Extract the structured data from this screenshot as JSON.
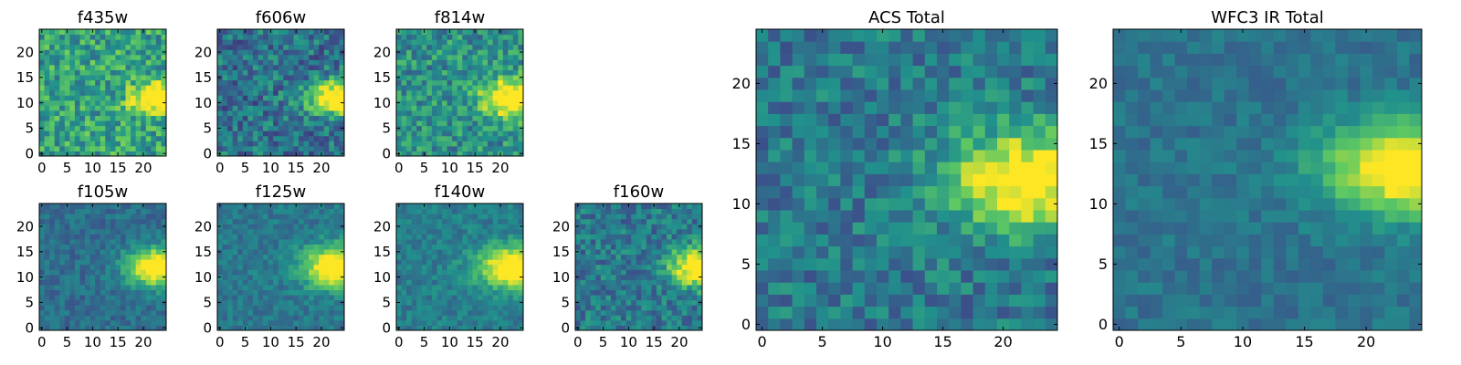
{
  "figure": {
    "background": "#ffffff"
  },
  "colormap": {
    "name": "viridis",
    "stops": [
      "#440154",
      "#3b528b",
      "#21918c",
      "#5ec962",
      "#fde725"
    ]
  },
  "chart_data": [
    {
      "type": "heatmap",
      "title": "f435w",
      "grid_size": 25,
      "xlim": [
        0,
        24
      ],
      "ylim": [
        0,
        24
      ],
      "xticks": [
        "0",
        "5",
        "10",
        "15",
        "20"
      ],
      "yticks": [
        "0",
        "5",
        "10",
        "15",
        "20"
      ],
      "feature": {
        "x": 23,
        "y": 11,
        "sx": 3.5,
        "sy": 2.0,
        "amp": 0.8
      },
      "noise": 0.22,
      "base": 0.58
    },
    {
      "type": "heatmap",
      "title": "f606w",
      "grid_size": 25,
      "xlim": [
        0,
        24
      ],
      "ylim": [
        0,
        24
      ],
      "xticks": [
        "0",
        "5",
        "10",
        "15",
        "20"
      ],
      "yticks": [
        "0",
        "5",
        "10",
        "15",
        "20"
      ],
      "feature": {
        "x": 23,
        "y": 11,
        "sx": 4.0,
        "sy": 2.3,
        "amp": 0.85
      },
      "noise": 0.2,
      "base": 0.38
    },
    {
      "type": "heatmap",
      "title": "f814w",
      "grid_size": 25,
      "xlim": [
        0,
        24
      ],
      "ylim": [
        0,
        24
      ],
      "xticks": [
        "0",
        "5",
        "10",
        "15",
        "20"
      ],
      "yticks": [
        "0",
        "5",
        "10",
        "15",
        "20"
      ],
      "feature": {
        "x": 23,
        "y": 11,
        "sx": 4.5,
        "sy": 2.6,
        "amp": 0.75
      },
      "noise": 0.2,
      "base": 0.5
    },
    {
      "type": "heatmap",
      "title": "f105w",
      "grid_size": 25,
      "xlim": [
        0,
        24
      ],
      "ylim": [
        0,
        24
      ],
      "xticks": [
        "0",
        "5",
        "10",
        "15",
        "20"
      ],
      "yticks": [
        "0",
        "5",
        "10",
        "15",
        "20"
      ],
      "feature": {
        "x": 23,
        "y": 12,
        "sx": 4.2,
        "sy": 2.6,
        "amp": 0.85
      },
      "noise": 0.1,
      "base": 0.36
    },
    {
      "type": "heatmap",
      "title": "f125w",
      "grid_size": 25,
      "xlim": [
        0,
        24
      ],
      "ylim": [
        0,
        24
      ],
      "xticks": [
        "0",
        "5",
        "10",
        "15",
        "20"
      ],
      "yticks": [
        "0",
        "5",
        "10",
        "15",
        "20"
      ],
      "feature": {
        "x": 23,
        "y": 12,
        "sx": 4.5,
        "sy": 2.8,
        "amp": 0.8
      },
      "noise": 0.1,
      "base": 0.4
    },
    {
      "type": "heatmap",
      "title": "f140w",
      "grid_size": 25,
      "xlim": [
        0,
        24
      ],
      "ylim": [
        0,
        24
      ],
      "xticks": [
        "0",
        "5",
        "10",
        "15",
        "20"
      ],
      "yticks": [
        "0",
        "5",
        "10",
        "15",
        "20"
      ],
      "feature": {
        "x": 23,
        "y": 12,
        "sx": 5.0,
        "sy": 2.8,
        "amp": 0.8
      },
      "noise": 0.1,
      "base": 0.42
    },
    {
      "type": "heatmap",
      "title": "f160w",
      "grid_size": 25,
      "xlim": [
        0,
        24
      ],
      "ylim": [
        0,
        24
      ],
      "xticks": [
        "0",
        "5",
        "10",
        "15",
        "20"
      ],
      "yticks": [
        "0",
        "5",
        "10",
        "15",
        "20"
      ],
      "feature": {
        "x": 24,
        "y": 12,
        "sx": 4.0,
        "sy": 2.6,
        "amp": 0.85
      },
      "noise": 0.16,
      "base": 0.4
    },
    {
      "type": "heatmap",
      "title": "ACS Total",
      "grid_size": 25,
      "xlim": [
        0,
        24
      ],
      "ylim": [
        0,
        24
      ],
      "xticks": [
        "0",
        "5",
        "10",
        "15",
        "20"
      ],
      "yticks": [
        "0",
        "5",
        "10",
        "15",
        "20"
      ],
      "feature": {
        "x": 22,
        "y": 12,
        "sx": 4.5,
        "sy": 2.8,
        "amp": 0.75
      },
      "noise": 0.16,
      "base": 0.4
    },
    {
      "type": "heatmap",
      "title": "WFC3 IR Total",
      "grid_size": 25,
      "xlim": [
        0,
        24
      ],
      "ylim": [
        0,
        24
      ],
      "xticks": [
        "0",
        "5",
        "10",
        "15",
        "20"
      ],
      "yticks": [
        "0",
        "5",
        "10",
        "15",
        "20"
      ],
      "feature": {
        "x": 24,
        "y": 13,
        "sx": 5.0,
        "sy": 2.6,
        "amp": 0.8
      },
      "noise": 0.08,
      "base": 0.38
    }
  ]
}
